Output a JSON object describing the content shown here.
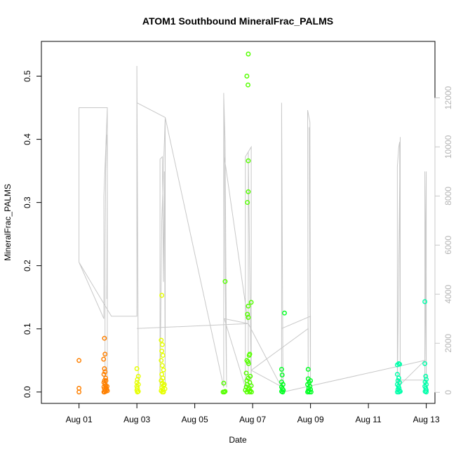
{
  "chart_data": {
    "type": "scatter",
    "title": "ATOM1 Southbound MineralFrac_PALMS",
    "xlabel": "Date",
    "ylabel": "MineralFrac_PALMS",
    "xlim": [
      -0.3,
      13.3
    ],
    "ylim": [
      -0.018,
      0.555
    ],
    "x_ticks": [
      {
        "x": 1,
        "label": "Aug 01"
      },
      {
        "x": 3,
        "label": "Aug 03"
      },
      {
        "x": 5,
        "label": "Aug 05"
      },
      {
        "x": 7,
        "label": "Aug 07"
      },
      {
        "x": 9,
        "label": "Aug 09"
      },
      {
        "x": 11,
        "label": "Aug 11"
      },
      {
        "x": 13,
        "label": "Aug 13"
      }
    ],
    "y_ticks": [
      "0.0",
      "0.1",
      "0.2",
      "0.3",
      "0.4",
      "0.5"
    ],
    "y2": {
      "label": "",
      "lim": [
        -450,
        14300
      ],
      "ticks": [
        "0",
        "2000",
        "4000",
        "6000",
        "8000",
        "10000",
        "12000"
      ],
      "color": "#c8c8c8"
    },
    "altitude_trace": [
      [
        1.0,
        5300
      ],
      [
        1.0,
        11600
      ],
      [
        1.98,
        11600
      ],
      [
        1.98,
        200
      ],
      [
        1.9,
        200
      ],
      [
        1.9,
        5700
      ],
      [
        1.93,
        10000
      ],
      [
        1.96,
        10500
      ],
      [
        1.98,
        9000
      ],
      [
        1.96,
        3800
      ],
      [
        1.98,
        8000
      ],
      [
        1.98,
        11600
      ],
      [
        1.86,
        8000
      ],
      [
        1.86,
        3000
      ],
      [
        1.0,
        5300
      ],
      [
        2.12,
        3100
      ],
      [
        3.0,
        3100
      ],
      [
        3.0,
        13300
      ],
      [
        3.05,
        200
      ],
      [
        3.0,
        12000
      ],
      [
        3.0,
        11800
      ],
      [
        3.98,
        11200
      ],
      [
        3.98,
        200
      ],
      [
        3.95,
        9000
      ],
      [
        3.92,
        4500
      ],
      [
        3.88,
        9600
      ],
      [
        3.8,
        9500
      ],
      [
        3.8,
        200
      ],
      [
        3.86,
        7000
      ],
      [
        3.98,
        11200
      ],
      [
        6.0,
        200
      ],
      [
        6.0,
        12200
      ],
      [
        6.05,
        4800
      ],
      [
        6.1,
        200
      ],
      [
        6.05,
        10200
      ],
      [
        6.0,
        12100
      ],
      [
        6.02,
        9600
      ],
      [
        6.85,
        2800
      ],
      [
        6.85,
        200
      ],
      [
        6.85,
        9800
      ],
      [
        6.95,
        200
      ],
      [
        6.95,
        10000
      ],
      [
        6.75,
        9600
      ],
      [
        6.75,
        200
      ],
      [
        6.02,
        3000
      ],
      [
        6.85,
        2800
      ],
      [
        3.0,
        2600
      ],
      [
        6.85,
        2800
      ],
      [
        8.0,
        200
      ],
      [
        8.0,
        11800
      ],
      [
        8.05,
        200
      ],
      [
        6.95,
        900
      ],
      [
        8.92,
        2600
      ],
      [
        8.92,
        200
      ],
      [
        8.9,
        11500
      ],
      [
        8.98,
        11000
      ],
      [
        9.0,
        200
      ],
      [
        8.95,
        10800
      ],
      [
        9.0,
        200
      ],
      [
        9.0,
        3100
      ],
      [
        8.0,
        2600
      ],
      [
        8.0,
        0
      ],
      [
        12.95,
        1300
      ],
      [
        12.0,
        200
      ],
      [
        12.0,
        9200
      ],
      [
        12.05,
        10000
      ],
      [
        12.08,
        10200
      ],
      [
        12.1,
        200
      ],
      [
        12.1,
        10400
      ],
      [
        12.0,
        200
      ],
      [
        12.0,
        200
      ],
      [
        12.0,
        500
      ],
      [
        12.95,
        500
      ],
      [
        12.95,
        200
      ],
      [
        12.95,
        9000
      ],
      [
        13.0,
        200
      ],
      [
        13.0,
        9000
      ],
      [
        12.95,
        1300
      ]
    ],
    "series": [
      {
        "name": "",
        "color": "#ff8000",
        "points": [
          [
            1.0,
            0.05
          ],
          [
            1.0,
            0.006
          ],
          [
            1.0,
            0.0
          ],
          [
            1.88,
            0.085
          ],
          [
            1.9,
            0.06
          ],
          [
            1.88,
            0.037
          ],
          [
            1.9,
            0.032
          ],
          [
            1.86,
            0.028
          ],
          [
            1.92,
            0.022
          ],
          [
            1.88,
            0.018
          ],
          [
            1.86,
            0.015
          ],
          [
            1.9,
            0.012
          ],
          [
            1.92,
            0.01
          ],
          [
            1.86,
            0.008
          ],
          [
            1.88,
            0.005
          ],
          [
            1.9,
            0.003
          ],
          [
            1.92,
            0.001
          ],
          [
            1.86,
            0.0
          ],
          [
            1.88,
            0.0
          ],
          [
            1.94,
            0.006
          ],
          [
            1.96,
            0.004
          ],
          [
            1.98,
            0.002
          ],
          [
            1.85,
            0.052
          ],
          [
            1.93,
            0.018
          ],
          [
            1.97,
            0.009
          ]
        ]
      },
      {
        "name": "",
        "color": "#e6ff00",
        "points": [
          [
            3.0,
            0.037
          ],
          [
            3.05,
            0.025
          ],
          [
            3.02,
            0.02
          ],
          [
            3.0,
            0.015
          ],
          [
            3.05,
            0.012
          ],
          [
            3.0,
            0.009
          ],
          [
            3.02,
            0.006
          ],
          [
            3.0,
            0.003
          ],
          [
            3.05,
            0.001
          ],
          [
            3.02,
            0.0
          ],
          [
            3.86,
            0.153
          ],
          [
            3.84,
            0.082
          ],
          [
            3.88,
            0.075
          ],
          [
            3.86,
            0.065
          ],
          [
            3.9,
            0.058
          ],
          [
            3.84,
            0.05
          ],
          [
            3.88,
            0.042
          ],
          [
            3.92,
            0.035
          ],
          [
            3.86,
            0.028
          ],
          [
            3.9,
            0.022
          ],
          [
            3.84,
            0.018
          ],
          [
            3.88,
            0.014
          ],
          [
            3.92,
            0.01
          ],
          [
            3.86,
            0.007
          ],
          [
            3.9,
            0.004
          ],
          [
            3.84,
            0.002
          ],
          [
            3.88,
            0.0
          ],
          [
            3.92,
            0.0
          ],
          [
            3.95,
            0.012
          ],
          [
            3.97,
            0.005
          ]
        ]
      },
      {
        "name": "",
        "color": "#55ff00",
        "points": [
          [
            6.0,
            0.014
          ],
          [
            6.02,
            0.0
          ],
          [
            5.98,
            0.0
          ],
          [
            6.05,
            0.001
          ],
          [
            6.05,
            0.175
          ],
          [
            6.85,
            0.535
          ],
          [
            6.8,
            0.5
          ],
          [
            6.84,
            0.486
          ],
          [
            6.85,
            0.366
          ],
          [
            6.85,
            0.317
          ],
          [
            6.82,
            0.3
          ],
          [
            6.95,
            0.142
          ],
          [
            6.85,
            0.136
          ],
          [
            6.82,
            0.123
          ],
          [
            6.85,
            0.118
          ],
          [
            6.9,
            0.06
          ],
          [
            6.88,
            0.058
          ],
          [
            6.8,
            0.05
          ],
          [
            6.84,
            0.048
          ],
          [
            6.86,
            0.045
          ],
          [
            6.78,
            0.03
          ],
          [
            6.92,
            0.025
          ],
          [
            6.85,
            0.022
          ],
          [
            6.8,
            0.018
          ],
          [
            6.9,
            0.015
          ],
          [
            6.82,
            0.012
          ],
          [
            6.95,
            0.01
          ],
          [
            6.78,
            0.008
          ],
          [
            6.88,
            0.006
          ],
          [
            6.84,
            0.004
          ],
          [
            6.92,
            0.002
          ],
          [
            6.8,
            0.0
          ],
          [
            6.9,
            0.0
          ],
          [
            6.96,
            0.0
          ],
          [
            6.75,
            0.003
          ]
        ]
      },
      {
        "name": "",
        "color": "#00ff22",
        "points": [
          [
            8.0,
            0.036
          ],
          [
            8.02,
            0.027
          ],
          [
            8.1,
            0.125
          ],
          [
            8.0,
            0.016
          ],
          [
            8.05,
            0.012
          ],
          [
            8.0,
            0.008
          ],
          [
            8.03,
            0.005
          ],
          [
            8.06,
            0.003
          ],
          [
            8.0,
            0.001
          ],
          [
            8.04,
            0.0
          ],
          [
            8.92,
            0.036
          ],
          [
            8.92,
            0.021
          ],
          [
            9.0,
            0.018
          ],
          [
            8.95,
            0.015
          ],
          [
            8.9,
            0.012
          ],
          [
            8.98,
            0.009
          ],
          [
            8.94,
            0.006
          ],
          [
            9.0,
            0.004
          ],
          [
            8.92,
            0.002
          ],
          [
            8.96,
            0.0
          ],
          [
            8.9,
            0.0
          ],
          [
            9.02,
            0.0
          ]
        ]
      },
      {
        "name": "",
        "color": "#00ffaa",
        "points": [
          [
            12.0,
            0.043
          ],
          [
            12.05,
            0.045
          ],
          [
            12.08,
            0.044
          ],
          [
            12.0,
            0.028
          ],
          [
            12.05,
            0.022
          ],
          [
            12.02,
            0.018
          ],
          [
            12.08,
            0.015
          ],
          [
            12.0,
            0.012
          ],
          [
            12.04,
            0.009
          ],
          [
            12.06,
            0.006
          ],
          [
            12.02,
            0.004
          ],
          [
            12.08,
            0.002
          ],
          [
            12.0,
            0.0
          ],
          [
            12.05,
            0.0
          ],
          [
            12.1,
            0.001
          ],
          [
            12.95,
            0.143
          ],
          [
            12.95,
            0.045
          ],
          [
            12.98,
            0.025
          ],
          [
            13.0,
            0.02
          ],
          [
            12.96,
            0.016
          ],
          [
            13.0,
            0.012
          ],
          [
            12.95,
            0.009
          ],
          [
            12.98,
            0.006
          ],
          [
            13.0,
            0.003
          ],
          [
            12.96,
            0.001
          ],
          [
            13.0,
            0.0
          ]
        ]
      }
    ]
  }
}
